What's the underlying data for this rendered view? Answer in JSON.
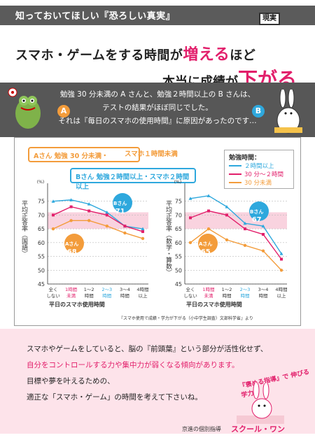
{
  "header": {
    "band_title": "知っておいてほしい『恐ろしい真実』",
    "stamp": "現実",
    "headline1_a": "スマホ・ゲームをする時間が",
    "headline1_b": "増える",
    "headline1_c": "ほど",
    "headline2_a": "本当に成績が",
    "headline2_b": "下がる"
  },
  "intro": {
    "line1": "勉強 30 分未満の A さんと、勉強２時間以上の B さんは、",
    "line2": "テストの結果がほぼ同じでした。",
    "line3": "それは『毎日のスマホの使用時間』に原因があったのです…",
    "mark_a": "A",
    "mark_b": "B"
  },
  "chart_labels": {
    "a_who": "Aさん",
    "a_text": "勉強 30 分未満・",
    "a_sumaho": "スマホ１時間未満",
    "b_who": "Bさん",
    "b_text": "勉強２時間以上・スマホ２時間以上",
    "legend_title": "勉強時間：",
    "legend_items": [
      "２時間以上",
      "30 分～２時間",
      "30 分未満"
    ],
    "y_unit": "(%)",
    "ylabel_left": "平均正答率（国語）",
    "ylabel_right": "平均正答率（数学・算数）",
    "xlabel": "平日のスマホ使用時間",
    "badge_a_left_name": "Aさん",
    "badge_a_left_val": "68",
    "badge_b_left_name": "Bさん",
    "badge_b_left_val": "71",
    "badge_a_right_name": "Aさん",
    "badge_a_right_val": "65",
    "badge_b_right_name": "Bさん",
    "badge_b_right_val": "67",
    "unit_ten": "てん",
    "source": "『スマホ使用で成績・学力が下がる（小中学生調査）文部科学省』より"
  },
  "chart_data": [
    {
      "type": "line",
      "ylabel": "平均正答率（国語）",
      "xlabel": "平日のスマホ使用時間",
      "categories": [
        "全く しない",
        "1時間 未満",
        "1～2 時間",
        "2～3 時間",
        "3～4 時間",
        "4時間 以上"
      ],
      "ylim": [
        45,
        80
      ],
      "yticks": [
        45,
        50,
        55,
        60,
        65,
        70,
        75
      ],
      "series": [
        {
          "name": "２時間以上",
          "values": [
            75,
            75.5,
            74,
            71,
            66,
            65
          ]
        },
        {
          "name": "30 分～２時間",
          "values": [
            70,
            73,
            71.5,
            70,
            66,
            64
          ]
        },
        {
          "name": "30 分未満",
          "values": [
            65,
            68,
            68,
            66,
            63.5,
            61.5
          ]
        }
      ]
    },
    {
      "type": "line",
      "ylabel": "平均正答率（数学・算数）",
      "xlabel": "平日のスマホ使用時間",
      "categories": [
        "全く しない",
        "1時間 未満",
        "1～2 時間",
        "2～3 時間",
        "3～4 時間",
        "4時間 以上"
      ],
      "ylim": [
        45,
        80
      ],
      "yticks": [
        45,
        50,
        55,
        60,
        65,
        70,
        75
      ],
      "series": [
        {
          "name": "２時間以上",
          "values": [
            76,
            77,
            73,
            67,
            66,
            56
          ]
        },
        {
          "name": "30 分～２時間",
          "values": [
            69,
            71.5,
            70,
            65,
            63,
            54
          ]
        },
        {
          "name": "30 分未満",
          "values": [
            60,
            65,
            61,
            59,
            57,
            50
          ]
        }
      ]
    }
  ],
  "colors": {
    "s1": "#2ea8dd",
    "s2": "#e21f6b",
    "s3": "#f39c3b",
    "highlight": "#f9d3df"
  },
  "bottom": {
    "line1": "スマホやゲームをしていると、脳の『前頭葉』という部分が活性化せず、",
    "line2": "自分をコントロールする力や集中力が弱くなる傾向があります。",
    "line3": "目標や夢を叶えるための、",
    "line4": "適正な「スマホ・ゲーム」の時間を考えて下さいね。",
    "slogan": "『褒める指導』で 伸びる学力",
    "footer": "京進の個別指導",
    "brand": "スクール・ワン"
  }
}
